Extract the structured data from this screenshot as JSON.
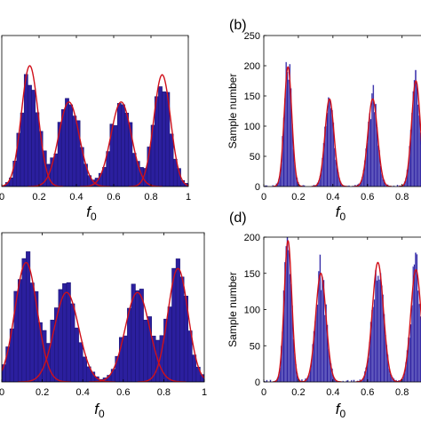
{
  "colors": {
    "bar_fill": "#2b1f9e",
    "bar_edge": "#1a1270",
    "bar_highlight": "#9a98e0",
    "fit_curve": "#d0101a",
    "axis": "#000000",
    "background": "#ffffff"
  },
  "chart_data": [
    {
      "panel": "a",
      "panel_label": "",
      "type": "bar",
      "xlabel_symbol": "f",
      "xlabel_sub": "0",
      "ylabel": "",
      "xlim": [
        0,
        1
      ],
      "ylim": [
        0,
        250
      ],
      "x_ticks": [
        "0",
        "0.2",
        "0.4",
        "0.6",
        "0.8",
        "1"
      ],
      "y_ticks": [],
      "bin_width": 0.02,
      "peaks": [
        {
          "mu": 0.15,
          "sigma": 0.045,
          "amp": 200
        },
        {
          "mu": 0.36,
          "sigma": 0.055,
          "amp": 140
        },
        {
          "mu": 0.64,
          "sigma": 0.055,
          "amp": 140
        },
        {
          "mu": 0.86,
          "sigma": 0.045,
          "amp": 185
        }
      ]
    },
    {
      "panel": "b",
      "panel_label": "(b)",
      "type": "bar",
      "xlabel_symbol": "f",
      "xlabel_sub": "0",
      "ylabel": "Sample number",
      "xlim": [
        0,
        0.93
      ],
      "ylim": [
        0,
        250
      ],
      "x_ticks": [
        "0",
        "0.2",
        "0.4",
        "0.6",
        "0.8"
      ],
      "y_ticks": [
        "0",
        "50",
        "100",
        "150",
        "200",
        "250"
      ],
      "bin_width": 0.007,
      "peaks": [
        {
          "mu": 0.14,
          "sigma": 0.022,
          "amp": 198
        },
        {
          "mu": 0.38,
          "sigma": 0.026,
          "amp": 145
        },
        {
          "mu": 0.63,
          "sigma": 0.028,
          "amp": 145
        },
        {
          "mu": 0.88,
          "sigma": 0.025,
          "amp": 175
        }
      ]
    },
    {
      "panel": "c",
      "panel_label": "",
      "type": "bar",
      "xlabel_symbol": "f",
      "xlabel_sub": "0",
      "ylabel": "",
      "xlim": [
        0,
        1
      ],
      "ylim": [
        0,
        250
      ],
      "x_ticks": [
        "0",
        "0.2",
        "0.4",
        "0.6",
        "0.8",
        "1"
      ],
      "y_ticks": [],
      "bin_width": 0.02,
      "peaks": [
        {
          "mu": 0.12,
          "sigma": 0.055,
          "amp": 200
        },
        {
          "mu": 0.32,
          "sigma": 0.06,
          "amp": 150
        },
        {
          "mu": 0.67,
          "sigma": 0.06,
          "amp": 150
        },
        {
          "mu": 0.87,
          "sigma": 0.05,
          "amp": 190
        }
      ]
    },
    {
      "panel": "d",
      "panel_label": "(d)",
      "type": "bar",
      "xlabel_symbol": "f",
      "xlabel_sub": "0",
      "ylabel": "Sample number",
      "xlim": [
        0,
        0.93
      ],
      "ylim": [
        0,
        200
      ],
      "x_ticks": [
        "0",
        "0.2",
        "0.4",
        "0.6",
        "0.8"
      ],
      "y_ticks": [
        "0",
        "50",
        "100",
        "150",
        "200"
      ],
      "bin_width": 0.007,
      "peaks": [
        {
          "mu": 0.14,
          "sigma": 0.022,
          "amp": 195
        },
        {
          "mu": 0.33,
          "sigma": 0.03,
          "amp": 150
        },
        {
          "mu": 0.66,
          "sigma": 0.032,
          "amp": 165
        },
        {
          "mu": 0.88,
          "sigma": 0.03,
          "amp": 155
        }
      ]
    }
  ]
}
